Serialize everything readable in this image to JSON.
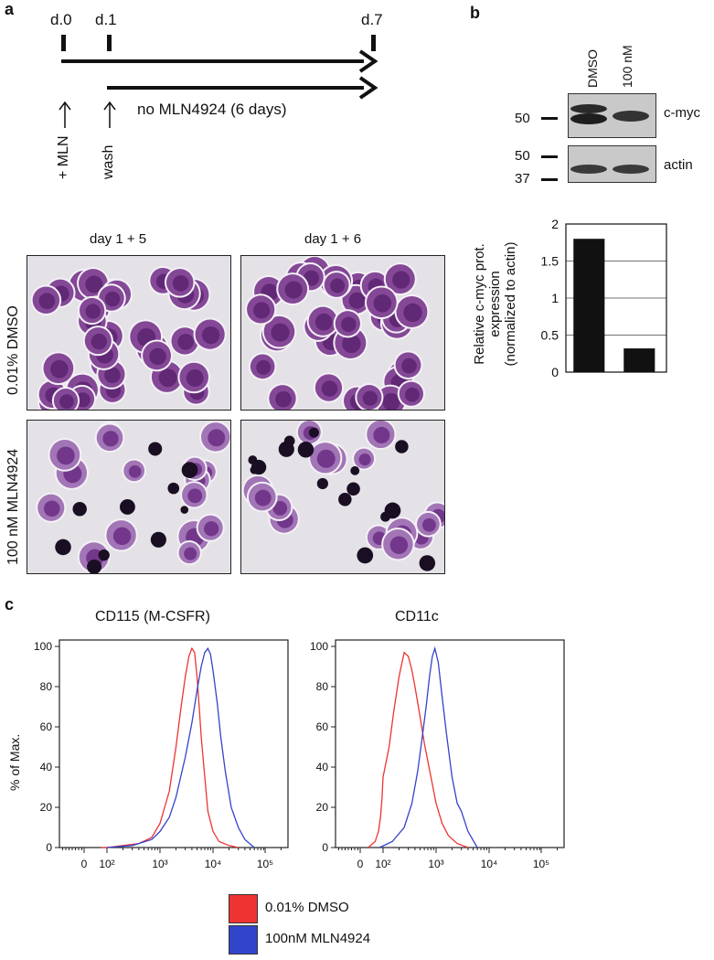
{
  "panel_a": {
    "letter": "a",
    "timeline": {
      "day0": "d.0",
      "day1": "d.1",
      "day7": "d.7",
      "no_drug_label": "no MLN4924 (6  days)",
      "add_label": "+ MLN",
      "wash_label": "wash"
    },
    "micrographs": {
      "col1": "day 1 + 5",
      "col2": "day 1 + 6",
      "row1": "0.01% DMSO",
      "row2": "100 nM MLN4924"
    }
  },
  "panel_b": {
    "letter": "b",
    "blot": {
      "lane1": "DMSO",
      "lane2": "100 nM",
      "cmyc_label": "c-myc",
      "actin_label": "actin",
      "marker_cmyc": "50",
      "marker_actin_top": "50",
      "marker_actin_bottom": "37"
    },
    "ylabel_line1": "Relative c-myc prot.",
    "ylabel_line2": "expression",
    "ylabel_line3": "(normalized to actin)"
  },
  "panel_c": {
    "letter": "c",
    "ylabel": "% of Max.",
    "legend": [
      {
        "label": "0.01% DMSO",
        "color": "#ee3333"
      },
      {
        "label": "100nM MLN4924",
        "color": "#3344cc"
      }
    ]
  },
  "chart_data": [
    {
      "type": "bar",
      "categories": [
        "DMSO",
        "100 nM"
      ],
      "values": [
        1.8,
        0.32
      ],
      "ylim": [
        0,
        2
      ],
      "yticks": [
        "0",
        "0.5",
        "1",
        "1.5",
        "2"
      ],
      "grid": true,
      "color": "#111111"
    },
    {
      "type": "line",
      "title": "CD115 (M-CSFR)",
      "ylabel": "% of Max.",
      "xscale": "log",
      "xticks": [
        "0",
        "10²",
        "10³",
        "10⁴",
        "10⁵"
      ],
      "yticks": [
        "0",
        "20",
        "40",
        "60",
        "80",
        "100"
      ],
      "ylim": [
        0,
        100
      ],
      "series": [
        {
          "name": "0.01% DMSO",
          "color": "#ee3333",
          "x": [
            30,
            100,
            200,
            400,
            700,
            1000,
            1500,
            2000,
            2500,
            3000,
            3500,
            4000,
            4500,
            5000,
            5500,
            6000,
            7000,
            8000,
            10000,
            13000,
            20000,
            30000
          ],
          "y": [
            0,
            0,
            1,
            2,
            5,
            12,
            28,
            50,
            70,
            85,
            95,
            99,
            97,
            85,
            70,
            55,
            35,
            18,
            8,
            3,
            1,
            0
          ]
        },
        {
          "name": "100nM MLN4924",
          "color": "#3344cc",
          "x": [
            100,
            300,
            700,
            1000,
            1500,
            2000,
            3000,
            4000,
            5000,
            6000,
            7000,
            8000,
            9000,
            10000,
            12000,
            14000,
            17000,
            22000,
            30000,
            40000,
            60000
          ],
          "y": [
            0,
            1,
            4,
            8,
            15,
            25,
            45,
            62,
            78,
            90,
            97,
            99,
            96,
            88,
            72,
            55,
            38,
            20,
            10,
            4,
            0
          ]
        }
      ]
    },
    {
      "type": "line",
      "title": "CD11c",
      "ylabel": "% of Max.",
      "xscale": "log",
      "xticks": [
        "0",
        "10²",
        "10³",
        "10⁴",
        "10⁵"
      ],
      "yticks": [
        "0",
        "20",
        "40",
        "60",
        "80",
        "100"
      ],
      "ylim": [
        0,
        100
      ],
      "series": [
        {
          "name": "0.01% DMSO",
          "color": "#ee3333",
          "x": [
            5,
            20,
            40,
            60,
            80,
            100,
            130,
            160,
            200,
            250,
            300,
            350,
            400,
            500,
            600,
            800,
            1000,
            1300,
            1700,
            2500,
            4000
          ],
          "y": [
            0,
            3,
            8,
            15,
            24,
            35,
            50,
            68,
            85,
            97,
            95,
            88,
            80,
            65,
            52,
            35,
            22,
            12,
            6,
            2,
            0
          ]
        },
        {
          "name": "100nM MLN4924",
          "color": "#3344cc",
          "x": [
            50,
            150,
            250,
            350,
            450,
            550,
            650,
            750,
            850,
            950,
            1100,
            1300,
            1600,
            2000,
            2500,
            3000,
            4000,
            6000
          ],
          "y": [
            0,
            3,
            10,
            22,
            38,
            55,
            70,
            85,
            95,
            99,
            92,
            75,
            55,
            35,
            22,
            18,
            8,
            0
          ]
        }
      ]
    }
  ]
}
